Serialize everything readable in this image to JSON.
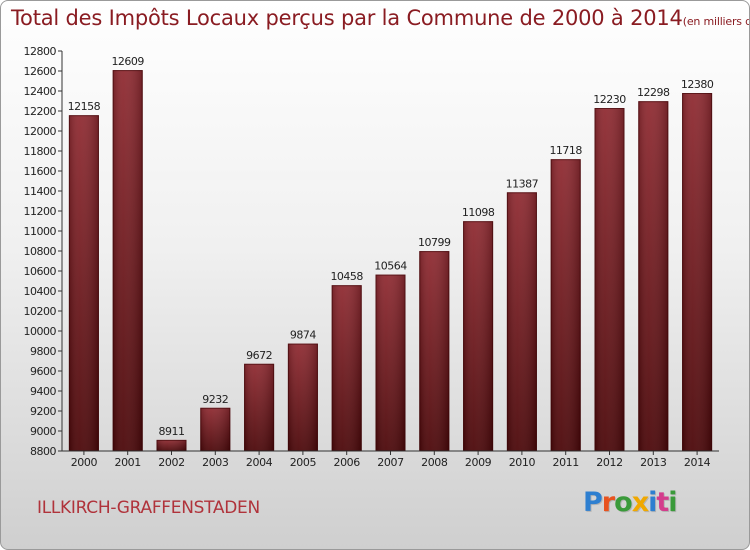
{
  "title": "Total des Impôts Locaux perçus par la Commune de 2000 à 2014",
  "title_unit": "(en milliers d'€)",
  "commune": "ILLKIRCH-GRAFFENSTADEN",
  "logo": {
    "letters": [
      "P",
      "r",
      "o",
      "x",
      "i",
      "t",
      "i"
    ],
    "colors": [
      "#2e7fd0",
      "#e8531f",
      "#3a9a3a",
      "#f0a800",
      "#2e7fd0",
      "#d43c8c",
      "#3a9a3a"
    ]
  },
  "colors": {
    "bar_top": "#8f2a31",
    "bar_bottom": "#4a0608",
    "axis": "#333333",
    "title": "#8a1c22",
    "commune": "#b0333b"
  },
  "chart_data": {
    "type": "bar",
    "title": "Total des Impôts Locaux perçus par la Commune de 2000 à 2014",
    "xlabel": "",
    "ylabel": "en milliers d'€",
    "categories": [
      "2000",
      "2001",
      "2002",
      "2003",
      "2004",
      "2005",
      "2006",
      "2007",
      "2008",
      "2009",
      "2010",
      "2011",
      "2012",
      "2013",
      "2014"
    ],
    "values": [
      12158,
      12609,
      8911,
      9232,
      9672,
      9874,
      10458,
      10564,
      10799,
      11098,
      11387,
      11718,
      12230,
      12298,
      12380
    ],
    "value_labels": [
      "12158",
      "12609",
      "8911",
      "9232",
      "9672",
      "9874",
      "10458",
      "10564",
      "10799",
      "11098",
      "11387",
      "11718",
      "12230",
      "12298",
      "12380"
    ],
    "ylim": [
      8800,
      12800
    ],
    "yticks": [
      8800,
      9000,
      9200,
      9400,
      9600,
      9800,
      10000,
      10200,
      10400,
      10600,
      10800,
      11000,
      11200,
      11400,
      11600,
      11800,
      12000,
      12200,
      12400,
      12600,
      12800
    ],
    "grid": false
  }
}
